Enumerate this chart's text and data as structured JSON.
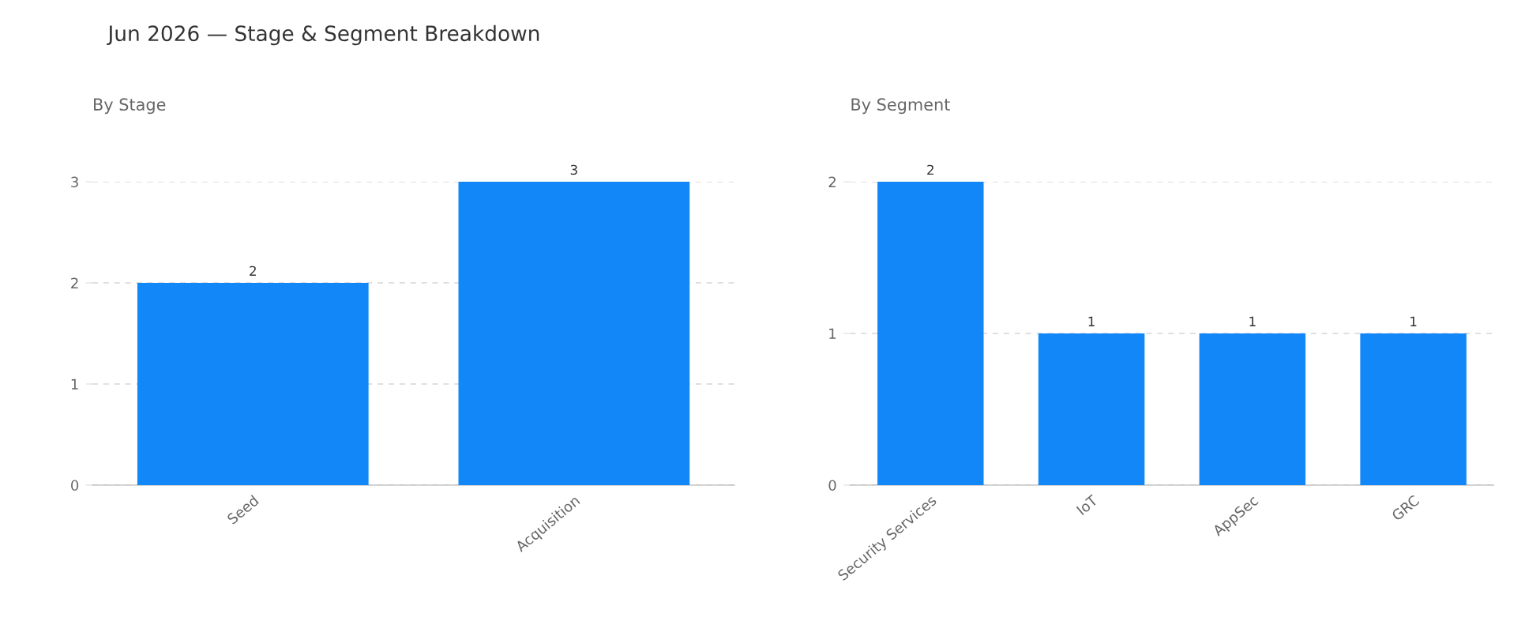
{
  "chart_data": [
    {
      "type": "bar",
      "title": "Jun 2026 — Stage & Segment Breakdown",
      "subtitle": "By Stage",
      "categories": [
        "Seed",
        "Acquisition"
      ],
      "values": [
        2,
        3
      ],
      "color": "#1288f8",
      "ylim": [
        0,
        3
      ],
      "yticks": [
        0,
        1,
        2,
        3
      ],
      "grid": "y",
      "data_labels": true
    },
    {
      "type": "bar",
      "subtitle": "By Segment",
      "categories": [
        "Security Services",
        "IoT",
        "AppSec",
        "GRC"
      ],
      "values": [
        2,
        1,
        1,
        1
      ],
      "color": "#1288f8",
      "ylim": [
        0,
        2
      ],
      "yticks": [
        0,
        1,
        2
      ],
      "grid": "y",
      "data_labels": true
    }
  ]
}
